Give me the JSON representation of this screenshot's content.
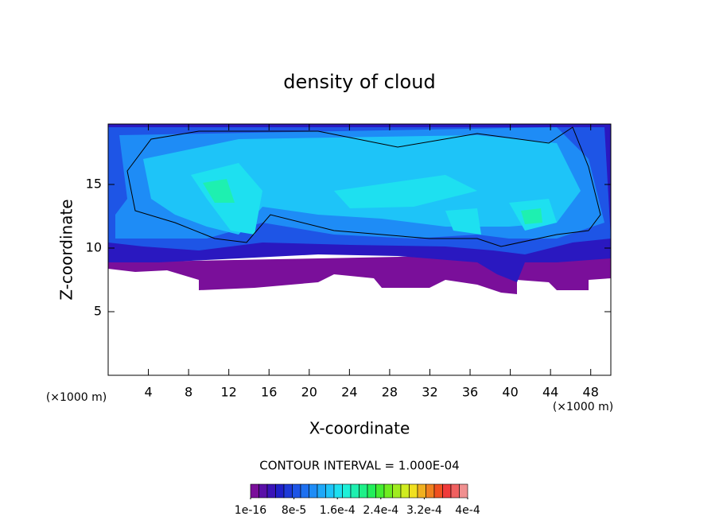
{
  "chart_data": {
    "type": "contour",
    "title": "density of cloud",
    "xlabel": "X-coordinate",
    "ylabel": "Z-coordinate",
    "x_unit": "(×1000 m)",
    "y_unit": "(×1000 m)",
    "xlim": [
      0,
      50
    ],
    "ylim": [
      0,
      19.75
    ],
    "xticks": [
      4,
      8,
      12,
      16,
      20,
      24,
      28,
      32,
      36,
      40,
      44,
      48
    ],
    "yticks": [
      5,
      10,
      15
    ],
    "contour_interval": "CONTOUR INTERVAL = 1.000E-04",
    "colorbar": {
      "lim": [
        0,
        0.0004
      ],
      "colors": [
        "#7a0f9a",
        "#5a10a8",
        "#3a14b8",
        "#2020c8",
        "#1e3ad8",
        "#1e55e6",
        "#1e70f0",
        "#1e8cf6",
        "#1ea8f8",
        "#1ec4f8",
        "#1ee0f0",
        "#1ef0d8",
        "#1ef0b0",
        "#1ef088",
        "#22ee5a",
        "#44ec30",
        "#70ec20",
        "#a0ec20",
        "#d0ec20",
        "#f0e020",
        "#f0b020",
        "#f08020",
        "#f05020",
        "#f03a3a",
        "#f06060",
        "#f09090"
      ],
      "ticks": [
        {
          "value": 1e-16,
          "label": "1e-16"
        },
        {
          "value": 8e-05,
          "label": "8e-5"
        },
        {
          "value": 0.00016,
          "label": "1.6e-4"
        },
        {
          "value": 0.00024,
          "label": "2.4e-4"
        },
        {
          "value": 0.00032,
          "label": "3.2e-4"
        },
        {
          "value": 0.0004,
          "label": "4e-4"
        }
      ]
    }
  }
}
